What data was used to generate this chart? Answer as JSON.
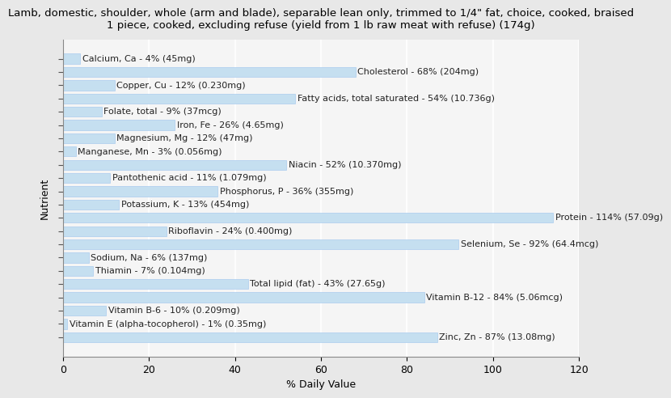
{
  "title": "Lamb, domestic, shoulder, whole (arm and blade), separable lean only, trimmed to 1/4\" fat, choice, cooked, braised\n1 piece, cooked, excluding refuse (yield from 1 lb raw meat with refuse) (174g)",
  "xlabel": "% Daily Value",
  "ylabel": "Nutrient",
  "xlim": [
    0,
    120
  ],
  "xticks": [
    0,
    20,
    40,
    60,
    80,
    100,
    120
  ],
  "plot_bg_color": "#f5f5f5",
  "fig_bg_color": "#e8e8e8",
  "bar_color": "#c5dff0",
  "bar_edge_color": "#aaccee",
  "label_color": "#222222",
  "grid_color": "#ffffff",
  "title_fontsize": 9.5,
  "label_fontsize": 8,
  "tick_fontsize": 9,
  "nutrients": [
    {
      "name": "Calcium, Ca - 4% (45mg)",
      "value": 4
    },
    {
      "name": "Cholesterol - 68% (204mg)",
      "value": 68
    },
    {
      "name": "Copper, Cu - 12% (0.230mg)",
      "value": 12
    },
    {
      "name": "Fatty acids, total saturated - 54% (10.736g)",
      "value": 54
    },
    {
      "name": "Folate, total - 9% (37mcg)",
      "value": 9
    },
    {
      "name": "Iron, Fe - 26% (4.65mg)",
      "value": 26
    },
    {
      "name": "Magnesium, Mg - 12% (47mg)",
      "value": 12
    },
    {
      "name": "Manganese, Mn - 3% (0.056mg)",
      "value": 3
    },
    {
      "name": "Niacin - 52% (10.370mg)",
      "value": 52
    },
    {
      "name": "Pantothenic acid - 11% (1.079mg)",
      "value": 11
    },
    {
      "name": "Phosphorus, P - 36% (355mg)",
      "value": 36
    },
    {
      "name": "Potassium, K - 13% (454mg)",
      "value": 13
    },
    {
      "name": "Protein - 114% (57.09g)",
      "value": 114
    },
    {
      "name": "Riboflavin - 24% (0.400mg)",
      "value": 24
    },
    {
      "name": "Selenium, Se - 92% (64.4mcg)",
      "value": 92
    },
    {
      "name": "Sodium, Na - 6% (137mg)",
      "value": 6
    },
    {
      "name": "Thiamin - 7% (0.104mg)",
      "value": 7
    },
    {
      "name": "Total lipid (fat) - 43% (27.65g)",
      "value": 43
    },
    {
      "name": "Vitamin B-12 - 84% (5.06mcg)",
      "value": 84
    },
    {
      "name": "Vitamin B-6 - 10% (0.209mg)",
      "value": 10
    },
    {
      "name": "Vitamin E (alpha-tocopherol) - 1% (0.35mg)",
      "value": 1
    },
    {
      "name": "Zinc, Zn - 87% (13.08mg)",
      "value": 87
    }
  ]
}
